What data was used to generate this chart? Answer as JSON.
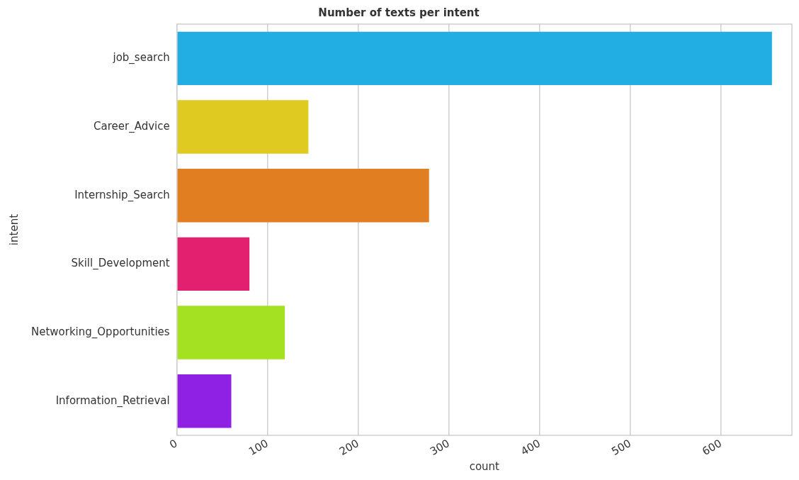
{
  "chart_data": {
    "type": "bar",
    "orientation": "horizontal",
    "title": "Number of texts per intent",
    "xlabel": "count",
    "ylabel": "intent",
    "categories": [
      "job_search",
      "Career_Advice",
      "Internship_Search",
      "Skill_Development",
      "Networking_Opportunities",
      "Information_Retrieval"
    ],
    "values": [
      656,
      145,
      278,
      80,
      119,
      60
    ],
    "colors": [
      "#22aee0",
      "#dfca21",
      "#e07e21",
      "#e31f6f",
      "#a3e121",
      "#8e21e4"
    ],
    "xlim": [
      0,
      678
    ],
    "xticks": [
      0,
      100,
      200,
      300,
      400,
      500,
      600
    ],
    "grid": "x",
    "legend": false
  }
}
